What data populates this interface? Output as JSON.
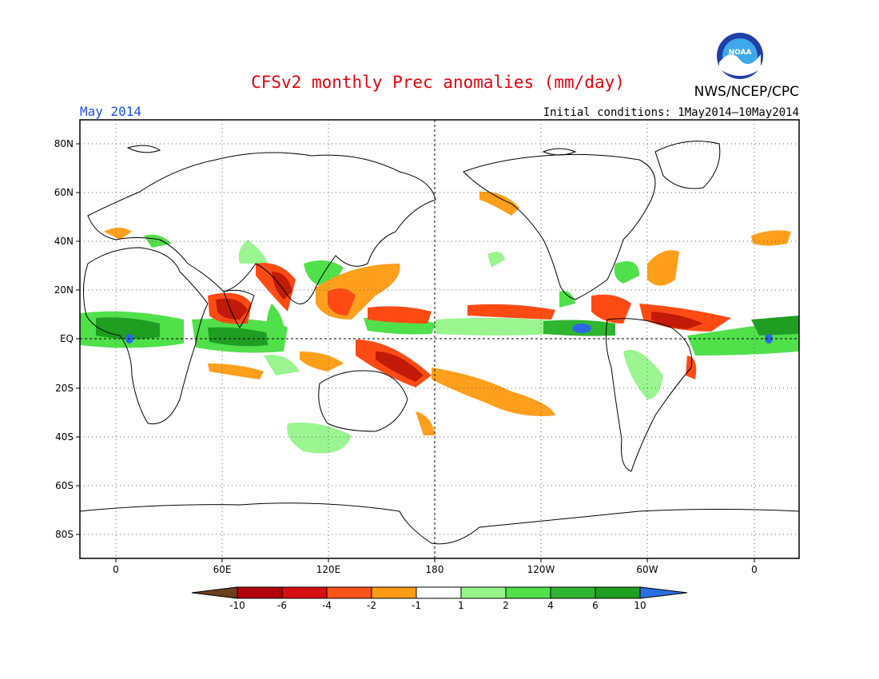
{
  "title": "CFSv2 monthly Prec anomalies (mm/day)",
  "month_label": "May 2014",
  "initial_conditions": "Initial conditions: 1May2014–10May2014",
  "org": "NWS/NCEP/CPC",
  "logo_text": "NOAA",
  "map": {
    "lon_ticks": [
      "0",
      "60E",
      "120E",
      "180",
      "120W",
      "60W",
      "0"
    ],
    "lat_ticks": [
      "80N",
      "60N",
      "40N",
      "20N",
      "EQ",
      "20S",
      "40S",
      "60S",
      "80S"
    ]
  },
  "colorbar": {
    "labels": [
      "-10",
      "-6",
      "-4",
      "-2",
      "-1",
      "1",
      "2",
      "4",
      "6",
      "10"
    ],
    "colors": [
      "#6e3e1e",
      "#b3000d",
      "#d60f12",
      "#fa5319",
      "#fe9a14",
      "#ffffff",
      "#96f58a",
      "#50e04a",
      "#30b530",
      "#1e9e1e",
      "#2a6fe0"
    ]
  },
  "anomaly_colors": {
    "dry_strong": "#c21a08",
    "dry_moderate": "#ff4a14",
    "dry_weak": "#ff9f1c",
    "wet_weak": "#9af590",
    "wet_moderate": "#50e04a",
    "wet_strong": "#1f9e22",
    "wet_extreme": "#2a68e8"
  }
}
